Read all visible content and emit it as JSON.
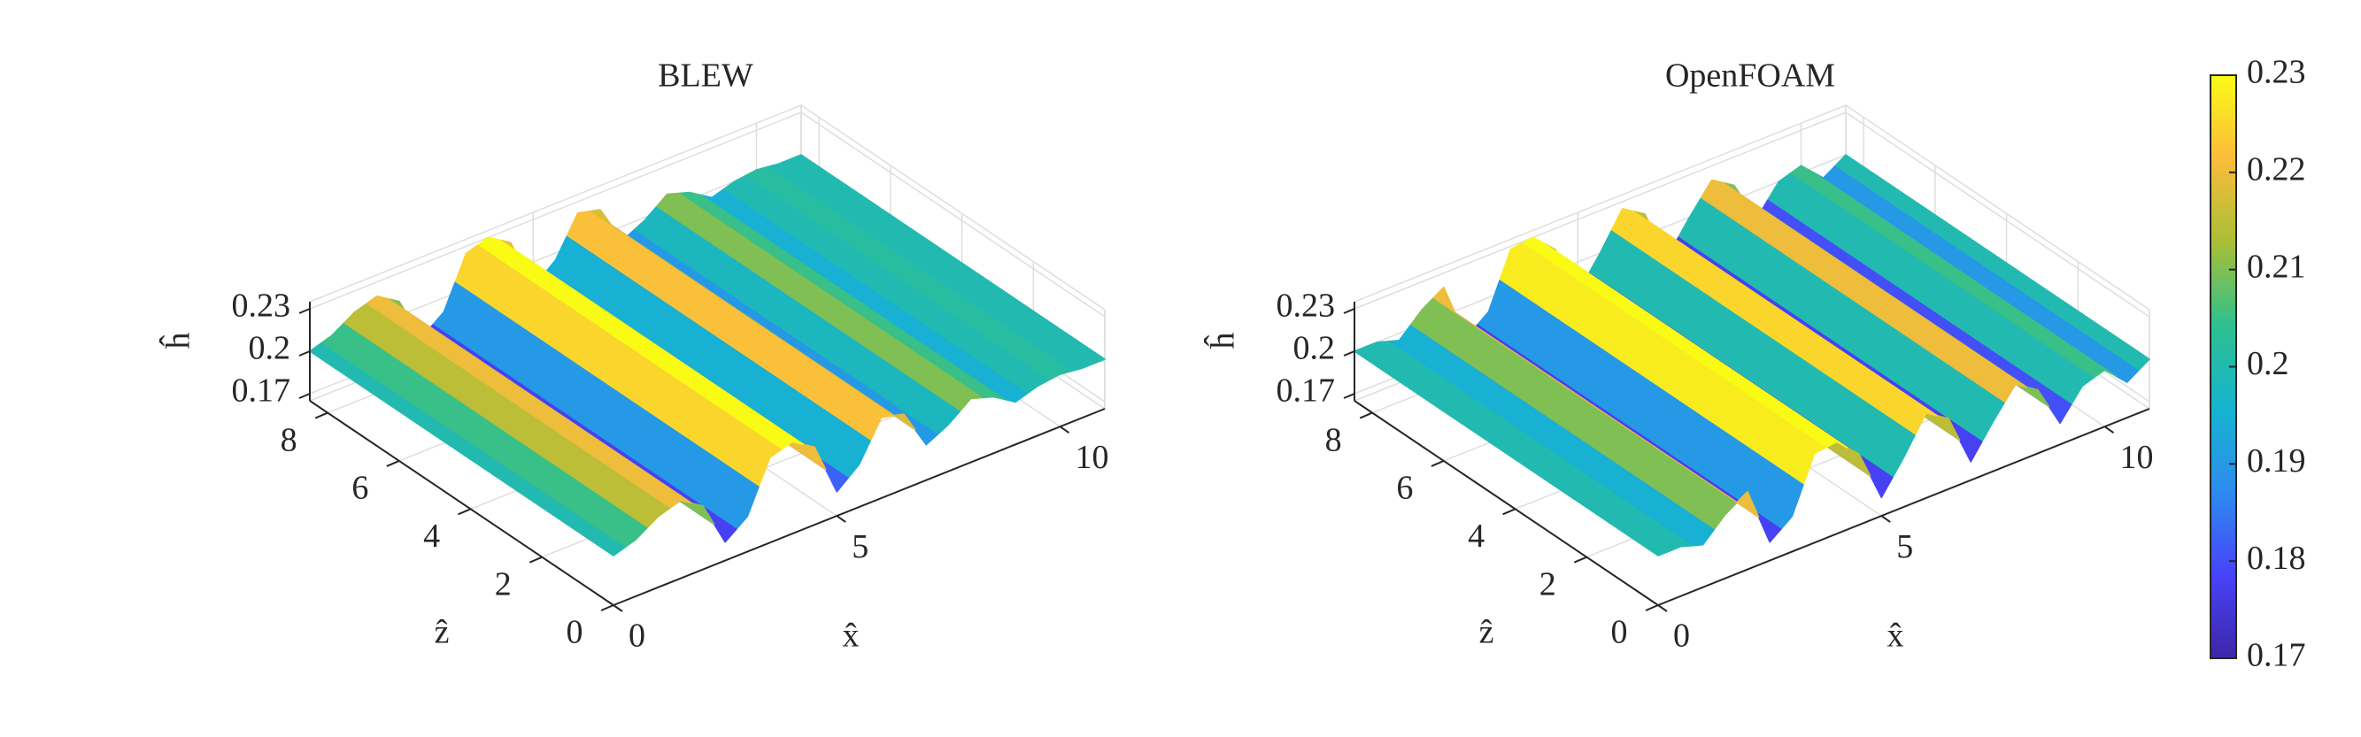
{
  "chart_data": [
    {
      "type": "surface",
      "title": "BLEW",
      "x_label": "x̂",
      "z_label": "ẑ",
      "h_label": "ĥ",
      "x": [
        0,
        0.5,
        1,
        1.5,
        2,
        2.5,
        3,
        3.5,
        4,
        4.5,
        5,
        5.5,
        6,
        6.5,
        7,
        7.5,
        8,
        8.5,
        9,
        9.5,
        10,
        10.5,
        11
      ],
      "values": [
        0.2,
        0.205,
        0.215,
        0.22,
        0.21,
        0.178,
        0.19,
        0.225,
        0.23,
        0.22,
        0.182,
        0.195,
        0.222,
        0.218,
        0.19,
        0.198,
        0.21,
        0.205,
        0.195,
        0.2,
        0.202,
        0.2,
        0.2
      ],
      "xlim": [
        0,
        11
      ],
      "xticks": [
        0,
        5,
        10
      ],
      "zlim": [
        0,
        8.5
      ],
      "zticks": [
        0,
        2,
        4,
        6,
        8
      ],
      "hlim": [
        0.165,
        0.235
      ],
      "hticks": [
        0.17,
        0.2,
        0.23
      ],
      "grid": true
    },
    {
      "type": "surface",
      "title": "OpenFOAM",
      "x_label": "x̂",
      "z_label": "ẑ",
      "h_label": "ĥ",
      "x": [
        0,
        0.5,
        1,
        1.5,
        2,
        2.5,
        3,
        3.5,
        4,
        4.5,
        5,
        5.5,
        6,
        6.5,
        7,
        7.5,
        8,
        8.5,
        9,
        9.5,
        10,
        10.5,
        11
      ],
      "values": [
        0.2,
        0.2,
        0.195,
        0.21,
        0.22,
        0.178,
        0.19,
        0.228,
        0.23,
        0.215,
        0.178,
        0.2,
        0.225,
        0.215,
        0.178,
        0.2,
        0.22,
        0.21,
        0.18,
        0.2,
        0.205,
        0.19,
        0.2
      ],
      "xlim": [
        0,
        11
      ],
      "xticks": [
        0,
        5,
        10
      ],
      "zlim": [
        0,
        8.5
      ],
      "zticks": [
        0,
        2,
        4,
        6,
        8
      ],
      "hlim": [
        0.165,
        0.235
      ],
      "hticks": [
        0.17,
        0.2,
        0.23
      ],
      "grid": true
    }
  ],
  "colorbar": {
    "lim": [
      0.17,
      0.23
    ],
    "ticks": [
      0.17,
      0.18,
      0.19,
      0.2,
      0.21,
      0.22,
      0.23
    ],
    "colormap": [
      "#3e26a8",
      "#4743f8",
      "#2d8cf0",
      "#16b3d0",
      "#2ec08f",
      "#a9bf35",
      "#fbbc3c",
      "#f9fb15"
    ]
  }
}
